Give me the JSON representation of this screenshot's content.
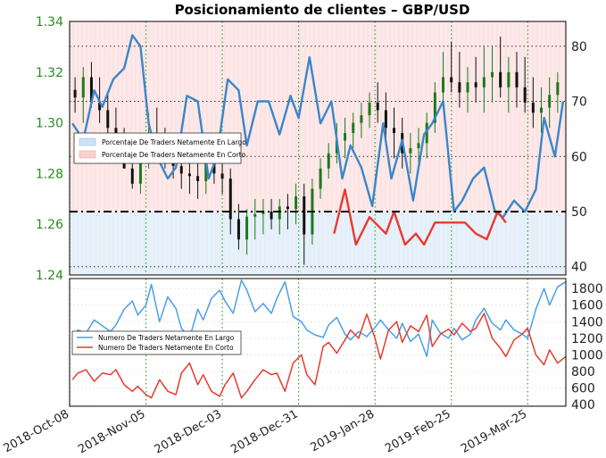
{
  "chart_data": [
    {
      "type": "line",
      "title": "Posicionamiento de clientes – GBP/USD",
      "x_ticks": [
        "2018-Oct-08",
        "2018-Nov-05",
        "2018-Dec-03",
        "2018-Dec-31",
        "2019-Jan-28",
        "2019-Feb-25",
        "2019-Mar-25"
      ],
      "price_axis": {
        "ticks": [
          1.24,
          1.26,
          1.28,
          1.3,
          1.32,
          1.34
        ],
        "ylim": [
          1.24,
          1.34
        ]
      },
      "percent_axis": {
        "ticks": [
          40,
          50,
          60,
          70,
          80
        ],
        "ylim": [
          38.5,
          84.5
        ],
        "reference_line": 50
      },
      "legend": {
        "position": "center-left",
        "entries": [
          {
            "label": "Porcentaje De Traders Netamente En Largo",
            "color": "#9cc3ea"
          },
          {
            "label": "Porcentaje De Traders Netamente En Corto",
            "color": "#f4a3a3"
          }
        ]
      },
      "series": [
        {
          "name": "GBP/USD",
          "kind": "candlestick",
          "x": [
            "2018-10-10",
            "2018-10-13",
            "2018-10-16",
            "2018-10-19",
            "2018-10-22",
            "2018-10-25",
            "2018-10-28",
            "2018-10-31",
            "2018-11-03",
            "2018-11-06",
            "2018-11-09",
            "2018-11-12",
            "2018-11-15",
            "2018-11-18",
            "2018-11-21",
            "2018-11-24",
            "2018-11-27",
            "2018-11-30",
            "2018-12-03",
            "2018-12-06",
            "2018-12-09",
            "2018-12-12",
            "2018-12-15",
            "2018-12-18",
            "2018-12-21",
            "2018-12-24",
            "2018-12-27",
            "2018-12-30",
            "2019-01-02",
            "2019-01-05",
            "2019-01-08",
            "2019-01-11",
            "2019-01-14",
            "2019-01-17",
            "2019-01-20",
            "2019-01-23",
            "2019-01-26",
            "2019-01-29",
            "2019-02-01",
            "2019-02-04",
            "2019-02-07",
            "2019-02-10",
            "2019-02-13",
            "2019-02-16",
            "2019-02-19",
            "2019-02-22",
            "2019-02-25",
            "2019-02-28",
            "2019-03-03",
            "2019-03-06",
            "2019-03-09",
            "2019-03-12",
            "2019-03-15",
            "2019-03-18",
            "2019-03-21",
            "2019-03-24",
            "2019-03-27",
            "2019-03-30",
            "2019-04-02",
            "2019-04-05"
          ],
          "open": [
            1.313,
            1.31,
            1.318,
            1.308,
            1.305,
            1.298,
            1.29,
            1.282,
            1.276,
            1.285,
            1.296,
            1.29,
            1.286,
            1.283,
            1.28,
            1.279,
            1.277,
            1.284,
            1.28,
            1.278,
            1.262,
            1.254,
            1.263,
            1.264,
            1.265,
            1.262,
            1.267,
            1.266,
            1.271,
            1.256,
            1.274,
            1.282,
            1.288,
            1.293,
            1.296,
            1.3,
            1.303,
            1.308,
            1.305,
            1.298,
            1.296,
            1.288,
            1.29,
            1.292,
            1.3,
            1.312,
            1.318,
            1.316,
            1.312,
            1.316,
            1.314,
            1.318,
            1.32,
            1.314,
            1.32,
            1.314,
            1.308,
            1.304,
            1.306,
            1.311
          ],
          "high": [
            1.318,
            1.322,
            1.324,
            1.318,
            1.312,
            1.306,
            1.298,
            1.292,
            1.29,
            1.304,
            1.306,
            1.298,
            1.294,
            1.29,
            1.288,
            1.286,
            1.288,
            1.29,
            1.288,
            1.282,
            1.268,
            1.266,
            1.27,
            1.27,
            1.27,
            1.27,
            1.272,
            1.276,
            1.276,
            1.278,
            1.286,
            1.292,
            1.3,
            1.302,
            1.304,
            1.308,
            1.312,
            1.316,
            1.312,
            1.306,
            1.302,
            1.296,
            1.298,
            1.304,
            1.316,
            1.328,
            1.332,
            1.328,
            1.322,
            1.326,
            1.33,
            1.33,
            1.334,
            1.326,
            1.328,
            1.326,
            1.318,
            1.314,
            1.318,
            1.32
          ],
          "low": [
            1.304,
            1.3,
            1.306,
            1.3,
            1.294,
            1.288,
            1.282,
            1.274,
            1.272,
            1.282,
            1.286,
            1.282,
            1.278,
            1.274,
            1.272,
            1.27,
            1.272,
            1.276,
            1.272,
            1.256,
            1.25,
            1.248,
            1.254,
            1.256,
            1.258,
            1.256,
            1.258,
            1.26,
            1.244,
            1.252,
            1.27,
            1.278,
            1.284,
            1.286,
            1.29,
            1.294,
            1.298,
            1.3,
            1.294,
            1.286,
            1.282,
            1.28,
            1.282,
            1.286,
            1.296,
            1.306,
            1.312,
            1.306,
            1.304,
            1.308,
            1.304,
            1.308,
            1.31,
            1.304,
            1.306,
            1.304,
            1.298,
            1.296,
            1.298,
            1.304
          ],
          "close": [
            1.31,
            1.318,
            1.308,
            1.305,
            1.298,
            1.29,
            1.282,
            1.276,
            1.285,
            1.296,
            1.29,
            1.286,
            1.283,
            1.28,
            1.279,
            1.277,
            1.284,
            1.28,
            1.278,
            1.262,
            1.254,
            1.263,
            1.264,
            1.265,
            1.262,
            1.267,
            1.266,
            1.271,
            1.256,
            1.274,
            1.282,
            1.288,
            1.293,
            1.296,
            1.3,
            1.303,
            1.308,
            1.305,
            1.298,
            1.296,
            1.288,
            1.29,
            1.292,
            1.3,
            1.312,
            1.318,
            1.316,
            1.312,
            1.316,
            1.314,
            1.318,
            1.32,
            1.314,
            1.32,
            1.314,
            1.308,
            1.304,
            1.306,
            1.311,
            1.316
          ]
        },
        {
          "name": "Porcentaje De Traders Netamente En Largo",
          "axis": "percent",
          "x": [
            "2018-10-09",
            "2018-10-13",
            "2018-10-17",
            "2018-10-20",
            "2018-10-24",
            "2018-10-28",
            "2018-10-31",
            "2018-11-03",
            "2018-11-06",
            "2018-11-09",
            "2018-11-13",
            "2018-11-16",
            "2018-11-20",
            "2018-11-24",
            "2018-11-28",
            "2018-12-01",
            "2018-12-05",
            "2018-12-09",
            "2018-12-12",
            "2018-12-16",
            "2018-12-20",
            "2018-12-24",
            "2018-12-28",
            "2018-12-31",
            "2019-01-04",
            "2019-01-08",
            "2019-01-12",
            "2019-01-16",
            "2019-01-19",
            "2019-01-23",
            "2019-01-27",
            "2019-01-31",
            "2019-02-03",
            "2019-02-07",
            "2019-02-11",
            "2019-02-15",
            "2019-02-18",
            "2019-02-22",
            "2019-02-26",
            "2019-03-01",
            "2019-03-05",
            "2019-03-09",
            "2019-03-13",
            "2019-03-16",
            "2019-03-20",
            "2019-03-24",
            "2019-03-28",
            "2019-03-31",
            "2019-04-04",
            "2019-04-07"
          ],
          "values": [
            66,
            63,
            72,
            69,
            74,
            76,
            82,
            80,
            66,
            60,
            56,
            58,
            71,
            70,
            56,
            60,
            74,
            72,
            62,
            70,
            70,
            64,
            71,
            67,
            78,
            66,
            70,
            56,
            62,
            58,
            51,
            66,
            56,
            63,
            52,
            64,
            66,
            70,
            50,
            52,
            56,
            58,
            50,
            49,
            52,
            50,
            54,
            67,
            60,
            70
          ]
        },
        {
          "name": "Porcentaje De Traders Netamente En Corto",
          "axis": "percent",
          "x": [
            "2019-01-13",
            "2019-01-17",
            "2019-01-21",
            "2019-01-26",
            "2019-02-01",
            "2019-02-04",
            "2019-02-08",
            "2019-02-12",
            "2019-02-15",
            "2019-02-19",
            "2019-03-02",
            "2019-03-06",
            "2019-03-10",
            "2019-03-14",
            "2019-03-17"
          ],
          "values": [
            46,
            54,
            44,
            49,
            46,
            50,
            44,
            46,
            44,
            48,
            48,
            46,
            45,
            50,
            48
          ]
        }
      ]
    },
    {
      "type": "line",
      "x_ticks": [
        "2018-Oct-08",
        "2018-Nov-05",
        "2018-Dec-03",
        "2018-Dec-31",
        "2019-Jan-28",
        "2019-Feb-25",
        "2019-Mar-25"
      ],
      "y_ticks": [
        400,
        600,
        800,
        1000,
        1200,
        1400,
        1600,
        1800
      ],
      "ylim": [
        380,
        1920
      ],
      "legend": {
        "position": "center-left"
      },
      "series": [
        {
          "name": "Numero De Traders Netamente En Largo",
          "color": "#4a9fe8",
          "x": [
            "2018-10-09",
            "2018-10-11",
            "2018-10-14",
            "2018-10-17",
            "2018-10-20",
            "2018-10-23",
            "2018-10-25",
            "2018-10-28",
            "2018-10-31",
            "2018-11-02",
            "2018-11-05",
            "2018-11-07",
            "2018-11-10",
            "2018-11-13",
            "2018-11-16",
            "2018-11-18",
            "2018-11-21",
            "2018-11-24",
            "2018-11-26",
            "2018-11-29",
            "2018-12-02",
            "2018-12-04",
            "2018-12-07",
            "2018-12-10",
            "2018-12-12",
            "2018-12-15",
            "2018-12-18",
            "2018-12-21",
            "2018-12-23",
            "2018-12-26",
            "2018-12-29",
            "2019-01-01",
            "2019-01-03",
            "2019-01-06",
            "2019-01-09",
            "2019-01-11",
            "2019-01-14",
            "2019-01-17",
            "2019-01-19",
            "2019-01-22",
            "2019-01-25",
            "2019-01-28",
            "2019-01-30",
            "2019-02-02",
            "2019-02-05",
            "2019-02-07",
            "2019-02-10",
            "2019-02-13",
            "2019-02-16",
            "2019-02-18",
            "2019-02-21",
            "2019-02-24",
            "2019-02-26",
            "2019-03-01",
            "2019-03-04",
            "2019-03-06",
            "2019-03-09",
            "2019-03-12",
            "2019-03-15",
            "2019-03-17",
            "2019-03-20",
            "2019-03-23",
            "2019-03-25",
            "2019-03-28",
            "2019-03-31",
            "2019-04-02",
            "2019-04-05",
            "2019-04-08"
          ],
          "values": [
            1180,
            1300,
            1260,
            1420,
            1350,
            1280,
            1360,
            1550,
            1650,
            1480,
            1600,
            1850,
            1400,
            1700,
            1560,
            1320,
            1200,
            1550,
            1420,
            1680,
            1780,
            1650,
            1500,
            1900,
            1780,
            1520,
            1620,
            1500,
            1680,
            1880,
            1460,
            1400,
            1300,
            1240,
            1210,
            1360,
            1450,
            1250,
            1180,
            1280,
            1220,
            1330,
            1420,
            1300,
            1200,
            1380,
            1160,
            1250,
            980,
            1420,
            1260,
            1200,
            1320,
            1180,
            1250,
            1420,
            1560,
            1380,
            1300,
            1420,
            1300,
            1250,
            1200,
            1550,
            1800,
            1600,
            1820,
            1880
          ]
        },
        {
          "name": "Numero De Traders Netamente En Corto",
          "color": "#e8392f",
          "x": [
            "2018-10-09",
            "2018-10-11",
            "2018-10-14",
            "2018-10-17",
            "2018-10-20",
            "2018-10-23",
            "2018-10-25",
            "2018-10-28",
            "2018-10-31",
            "2018-11-02",
            "2018-11-05",
            "2018-11-07",
            "2018-11-10",
            "2018-11-13",
            "2018-11-16",
            "2018-11-18",
            "2018-11-21",
            "2018-11-24",
            "2018-11-26",
            "2018-11-29",
            "2018-12-02",
            "2018-12-04",
            "2018-12-07",
            "2018-12-10",
            "2018-12-12",
            "2018-12-15",
            "2018-12-18",
            "2018-12-21",
            "2018-12-23",
            "2018-12-26",
            "2018-12-29",
            "2019-01-01",
            "2019-01-03",
            "2019-01-06",
            "2019-01-09",
            "2019-01-11",
            "2019-01-14",
            "2019-01-17",
            "2019-01-19",
            "2019-01-22",
            "2019-01-25",
            "2019-01-28",
            "2019-01-30",
            "2019-02-02",
            "2019-02-05",
            "2019-02-07",
            "2019-02-10",
            "2019-02-13",
            "2019-02-16",
            "2019-02-18",
            "2019-02-21",
            "2019-02-24",
            "2019-02-26",
            "2019-03-01",
            "2019-03-04",
            "2019-03-06",
            "2019-03-09",
            "2019-03-12",
            "2019-03-15",
            "2019-03-17",
            "2019-03-20",
            "2019-03-23",
            "2019-03-25",
            "2019-03-28",
            "2019-03-31",
            "2019-04-02",
            "2019-04-05",
            "2019-04-08"
          ],
          "values": [
            700,
            780,
            820,
            680,
            780,
            760,
            820,
            640,
            560,
            620,
            520,
            480,
            700,
            560,
            520,
            780,
            900,
            640,
            760,
            560,
            500,
            640,
            780,
            480,
            560,
            700,
            820,
            760,
            780,
            560,
            900,
            1000,
            760,
            640,
            1100,
            1150,
            1020,
            1180,
            1300,
            1200,
            1490,
            1200,
            950,
            1300,
            1400,
            1150,
            1350,
            1280,
            1480,
            1100,
            1250,
            1310,
            1240,
            1380,
            1280,
            1320,
            1500,
            1200,
            1080,
            980,
            1180,
            1250,
            1320,
            1000,
            880,
            1060,
            900,
            980
          ]
        }
      ]
    }
  ]
}
